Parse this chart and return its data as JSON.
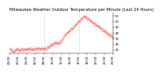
{
  "title": "Milwaukee Weather Outdoor Temperature per Minute (Last 24 Hours)",
  "line_color": "#ff0000",
  "background_color": "#ffffff",
  "vline_color": "#888888",
  "ylim": [
    22,
    58
  ],
  "yticks": [
    25,
    30,
    35,
    40,
    45,
    50,
    55
  ],
  "num_points": 1440,
  "vline_positions": [
    480,
    960
  ],
  "title_fontsize": 3.8,
  "tick_fontsize": 2.8,
  "marker_size": 0.5
}
